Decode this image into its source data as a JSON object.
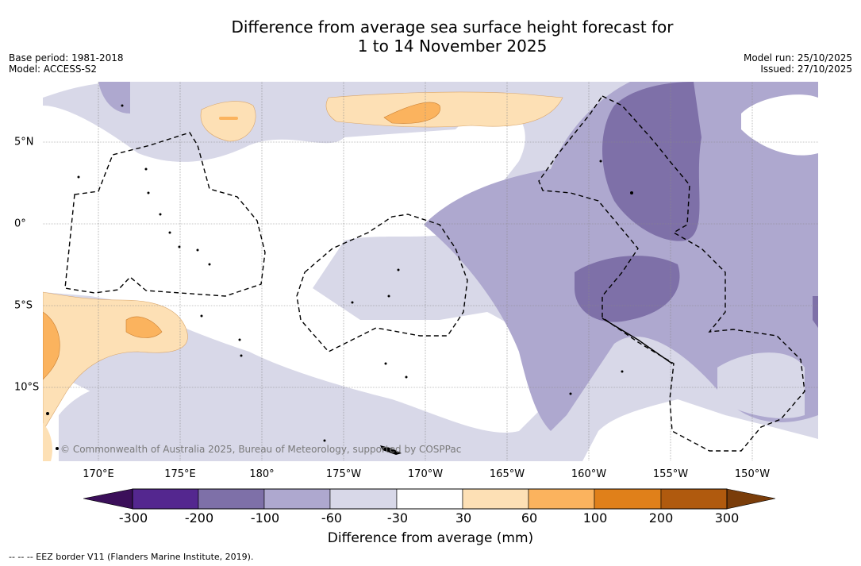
{
  "title_line1": "Difference from average sea surface height forecast for",
  "title_line2": "1 to 14 November 2025",
  "base_period": "Base period: 1981-2018",
  "model": "Model: ACCESS-S2",
  "model_run": "Model run: 25/10/2025",
  "issued": "Issued: 27/10/2025",
  "copyright": "© Commonwealth of Australia 2025, Bureau of Meteorology, supported by COSPPac",
  "footer_note": "--  --  -- EEZ border V11 (Flanders Marine Institute, 2019).",
  "longitude_labels": [
    "170°E",
    "175°E",
    "180°",
    "175°W",
    "170°W",
    "165°W",
    "160°W",
    "155°W",
    "150°W"
  ],
  "latitude_labels": [
    "5°N",
    "0°",
    "5°S",
    "10°S"
  ],
  "colorbar": {
    "label": "Difference from average (mm)",
    "ticks": [
      "-300",
      "-200",
      "-100",
      "-60",
      "-30",
      "30",
      "60",
      "100",
      "200",
      "300"
    ],
    "colors": {
      "below_-300": "#3b0f5a",
      "-300_-200": "#54278f",
      "-200_-100": "#7e70a8",
      "-100_-60": "#aea8cf",
      "-60_-30": "#d8d8e8",
      "-30_30": "#ffffff",
      "30_60": "#fde0b5",
      "60_100": "#fbb35e",
      "100_200": "#e0801a",
      "200_300": "#b05a0e",
      "above_300": "#7a3d0a"
    }
  },
  "legend_colors": {
    "grid": "#8a8a8a",
    "eez_border": "#000000",
    "land": "#000000"
  }
}
